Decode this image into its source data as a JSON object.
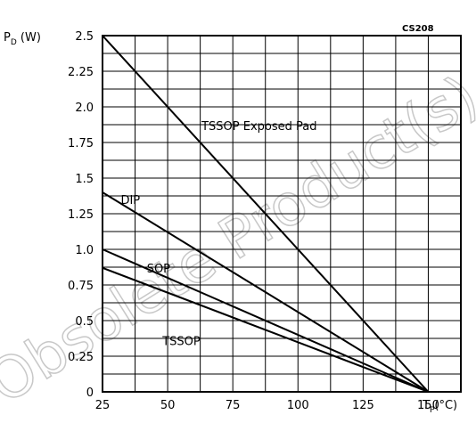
{
  "chart_data": {
    "type": "line",
    "chart_code": "CS208",
    "ylabel_main": "P",
    "ylabel_sub": "D",
    "ylabel_unit": " (W)",
    "xlabel_main": "T",
    "xlabel_sub": "P",
    "xlabel_unit": "(°C)",
    "xlim": [
      25,
      162.5
    ],
    "ylim": [
      0,
      2.5
    ],
    "grid": true,
    "x_ticks": [
      25,
      50,
      75,
      100,
      125,
      150
    ],
    "x_tick_labels": [
      "25",
      "50",
      "75",
      "100",
      "125",
      "150"
    ],
    "y_ticks": [
      0,
      0.25,
      0.5,
      0.75,
      1.0,
      1.25,
      1.5,
      1.75,
      2.0,
      2.25,
      2.5
    ],
    "y_tick_labels": [
      "0",
      "0.25",
      "0.5",
      "0.75",
      "1.0",
      "1.25",
      "1.5",
      "1.75",
      "2.0",
      "2.25",
      "2.5"
    ],
    "series": [
      {
        "name": "TSSOP Exposed Pad",
        "x": [
          25,
          150
        ],
        "y": [
          2.5,
          0
        ]
      },
      {
        "name": "DIP",
        "x": [
          25,
          150
        ],
        "y": [
          1.4,
          0
        ]
      },
      {
        "name": "SOP",
        "x": [
          25,
          150
        ],
        "y": [
          1.0,
          0
        ]
      },
      {
        "name": "TSSOP",
        "x": [
          25,
          150
        ],
        "y": [
          0.87,
          0
        ]
      }
    ],
    "annotations": [
      {
        "text": "TSSOP Exposed Pad",
        "x": 63,
        "y": 1.87
      },
      {
        "text": "DIP",
        "x": 32,
        "y": 1.35
      },
      {
        "text": "SOP",
        "x": 42,
        "y": 0.87
      },
      {
        "text": "TSSOP",
        "x": 48,
        "y": 0.36
      }
    ],
    "watermark": "Obsolete Product(s) - Obsolete"
  }
}
